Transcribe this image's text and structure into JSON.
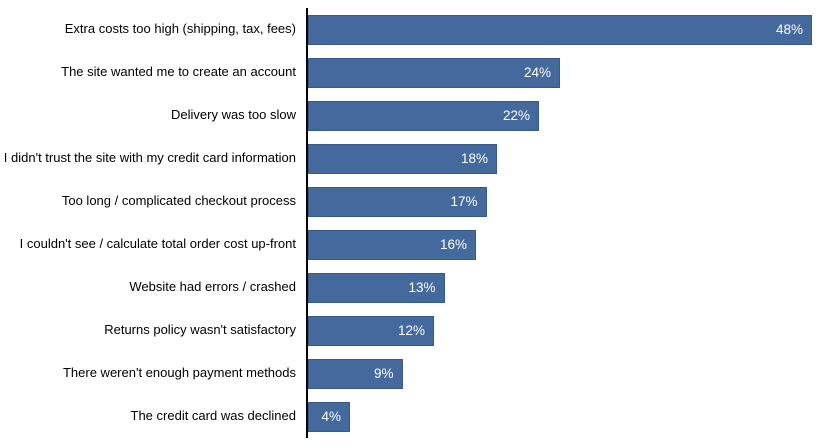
{
  "chart_data": {
    "type": "bar",
    "orientation": "horizontal",
    "title": "",
    "xlabel": "",
    "ylabel": "",
    "grid": false,
    "legend": false,
    "xlim": [
      0,
      50
    ],
    "value_suffix": "%",
    "categories": [
      "Extra costs too high (shipping, tax, fees)",
      "The site wanted me to create an account",
      "Delivery was too slow",
      "I didn't trust the site with my credit card information",
      "Too long / complicated checkout process",
      "I couldn't see / calculate total order cost up-front",
      "Website had errors / crashed",
      "Returns policy wasn't satisfactory",
      "There weren't enough payment methods",
      "The credit card was declined"
    ],
    "values": [
      48,
      24,
      22,
      18,
      17,
      16,
      13,
      12,
      9,
      4
    ],
    "value_labels": [
      "48%",
      "24%",
      "22%",
      "18%",
      "17%",
      "16%",
      "13%",
      "12%",
      "9%",
      "4%"
    ],
    "colors": {
      "bar_fill": "#44699d",
      "bar_border": "#37598a",
      "value_label": "#ffffff",
      "category_label": "#000000",
      "axis": "#000000",
      "background": "#ffffff"
    }
  }
}
